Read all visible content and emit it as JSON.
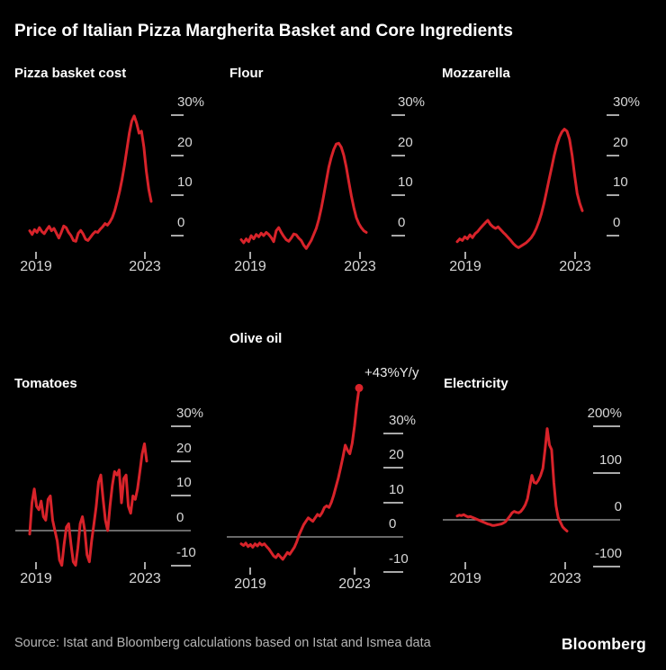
{
  "title": "Price of Italian Pizza Margherita Basket and Core Ingredients",
  "source": "Source: Istat and Bloomberg calculations based on Istat and Ismea data",
  "logo_text": "Bloomberg",
  "colors": {
    "background": "#000000",
    "line_red": "#d8232a",
    "title_text": "#ffffff",
    "axis_text": "#d7d7d7",
    "tick": "#a9a9a9",
    "zero_line": "#8c8c8c",
    "source_text": "#b5b5b5"
  },
  "chart_data": [
    {
      "id": "pizza-basket-cost",
      "type": "line",
      "title": "Pizza basket cost",
      "y_unit": "%",
      "x_ticks": [
        "2019",
        "2023"
      ],
      "y_ticks": [
        {
          "label": "30%",
          "value": 30
        },
        {
          "label": "20",
          "value": 20
        },
        {
          "label": "10",
          "value": 10
        },
        {
          "label": "0",
          "value": 0
        }
      ],
      "zero_baseline": false,
      "values": [
        1.2,
        0.3,
        1.5,
        0.8,
        2.0,
        1.0,
        0.5,
        1.5,
        2.3,
        1.2,
        1.8,
        0.6,
        -0.6,
        0.8,
        2.4,
        2.0,
        0.8,
        0.0,
        -1.2,
        -1.4,
        0.6,
        1.3,
        0.4,
        -0.9,
        -1.2,
        -0.4,
        0.4,
        1.0,
        0.8,
        1.6,
        2.2,
        3.0,
        2.6,
        3.4,
        4.5,
        6.2,
        8.5,
        11.0,
        14.0,
        17.5,
        21.5,
        25.5,
        28.5,
        29.8,
        28.0,
        25.5,
        26.0,
        22.0,
        16.0,
        11.5,
        8.5
      ]
    },
    {
      "id": "flour",
      "type": "line",
      "title": "Flour",
      "y_unit": "%",
      "x_ticks": [
        "2019",
        "2023"
      ],
      "y_ticks": [
        {
          "label": "30%",
          "value": 30
        },
        {
          "label": "20",
          "value": 20
        },
        {
          "label": "10",
          "value": 10
        },
        {
          "label": "0",
          "value": 0
        }
      ],
      "zero_baseline": false,
      "values": [
        -1.0,
        -1.8,
        -0.8,
        -1.5,
        0.0,
        -0.8,
        0.3,
        -0.3,
        0.6,
        0.0,
        0.8,
        0.3,
        -0.5,
        -1.5,
        1.2,
        2.0,
        0.8,
        -0.2,
        -1.0,
        -1.4,
        -0.6,
        0.4,
        0.2,
        -0.6,
        -1.2,
        -2.4,
        -3.2,
        -2.2,
        -1.2,
        0.3,
        1.8,
        4.0,
        6.8,
        10.0,
        13.5,
        17.0,
        19.5,
        21.5,
        22.8,
        23.0,
        22.0,
        20.0,
        17.0,
        13.5,
        10.0,
        7.0,
        4.5,
        3.0,
        2.0,
        1.2,
        0.8
      ]
    },
    {
      "id": "mozzarella",
      "type": "line",
      "title": "Mozzarella",
      "y_unit": "%",
      "x_ticks": [
        "2019",
        "2023"
      ],
      "y_ticks": [
        {
          "label": "30%",
          "value": 30
        },
        {
          "label": "20",
          "value": 20
        },
        {
          "label": "10",
          "value": 10
        },
        {
          "label": "0",
          "value": 0
        }
      ],
      "zero_baseline": false,
      "values": [
        -1.5,
        -0.8,
        -1.2,
        -0.3,
        -0.8,
        0.2,
        -0.5,
        0.5,
        1.0,
        1.8,
        2.5,
        3.2,
        3.8,
        2.8,
        2.2,
        1.8,
        2.2,
        1.5,
        0.8,
        0.2,
        -0.5,
        -1.2,
        -2.0,
        -2.6,
        -3.0,
        -2.6,
        -2.2,
        -1.8,
        -1.2,
        -0.5,
        0.5,
        1.8,
        3.5,
        5.5,
        8.0,
        11.0,
        14.0,
        17.0,
        20.0,
        22.5,
        24.5,
        25.8,
        26.5,
        26.0,
        24.0,
        20.0,
        15.0,
        10.5,
        8.0,
        6.2
      ]
    },
    {
      "id": "tomatoes",
      "type": "line",
      "title": "Tomatoes",
      "y_unit": "%",
      "x_ticks": [
        "2019",
        "2023"
      ],
      "y_ticks": [
        {
          "label": "30%",
          "value": 30
        },
        {
          "label": "20",
          "value": 20
        },
        {
          "label": "10",
          "value": 10
        },
        {
          "label": "0",
          "value": 0
        },
        {
          "label": "-10",
          "value": -10
        }
      ],
      "zero_baseline": true,
      "values": [
        -1,
        8,
        12,
        7,
        6,
        8.5,
        4,
        3,
        9,
        10,
        3,
        0,
        -3,
        -8.5,
        -10,
        -4,
        1,
        2,
        -4,
        -9,
        -10,
        -5,
        2,
        4,
        0,
        -7,
        -9,
        -3,
        2,
        7,
        14,
        16,
        9,
        3,
        0,
        7,
        13,
        17,
        16,
        17.5,
        8,
        15,
        16,
        7,
        5,
        10,
        9,
        12,
        17,
        22,
        25,
        20
      ]
    },
    {
      "id": "olive-oil",
      "type": "line",
      "title": "Olive oil",
      "y_unit": "%",
      "annotation": "+43%Y/y",
      "end_dot": true,
      "x_ticks": [
        "2019",
        "2023"
      ],
      "y_ticks": [
        {
          "label": "30%",
          "value": 30
        },
        {
          "label": "20",
          "value": 20
        },
        {
          "label": "10",
          "value": 10
        },
        {
          "label": "0",
          "value": 0
        },
        {
          "label": "-10",
          "value": -10
        }
      ],
      "zero_baseline": true,
      "values": [
        -2.0,
        -2.5,
        -1.8,
        -2.8,
        -2.2,
        -3.0,
        -2.0,
        -2.6,
        -1.8,
        -2.4,
        -2.0,
        -2.8,
        -3.5,
        -4.5,
        -5.5,
        -6.0,
        -5.0,
        -5.8,
        -6.5,
        -5.5,
        -4.5,
        -5.0,
        -4.0,
        -3.0,
        -1.5,
        0.5,
        2.0,
        3.5,
        4.5,
        5.5,
        5.0,
        4.5,
        5.5,
        6.5,
        6.0,
        7.0,
        8.5,
        9.0,
        8.5,
        10.0,
        12.0,
        14.5,
        17.0,
        20.0,
        23.0,
        26.5,
        25.0,
        24.0,
        27.0,
        32.0,
        38.0,
        43.0
      ]
    },
    {
      "id": "electricity",
      "type": "line",
      "title": "Electricity",
      "y_unit": "%",
      "x_ticks": [
        "2019",
        "2023"
      ],
      "y_ticks": [
        {
          "label": "200%",
          "value": 200
        },
        {
          "label": "100",
          "value": 100
        },
        {
          "label": "0",
          "value": 0
        },
        {
          "label": "-100",
          "value": -100
        }
      ],
      "zero_baseline": true,
      "values": [
        8,
        10,
        9,
        11,
        8,
        6,
        7,
        5,
        3,
        1,
        -1,
        -3,
        -5,
        -7,
        -9,
        -10,
        -12,
        -12,
        -11,
        -10,
        -9,
        -7,
        -4,
        2,
        8,
        15,
        18,
        16,
        15,
        18,
        24,
        32,
        45,
        70,
        95,
        80,
        78,
        85,
        95,
        110,
        150,
        195,
        160,
        150,
        80,
        30,
        5,
        -5,
        -15,
        -20,
        -24
      ]
    }
  ]
}
